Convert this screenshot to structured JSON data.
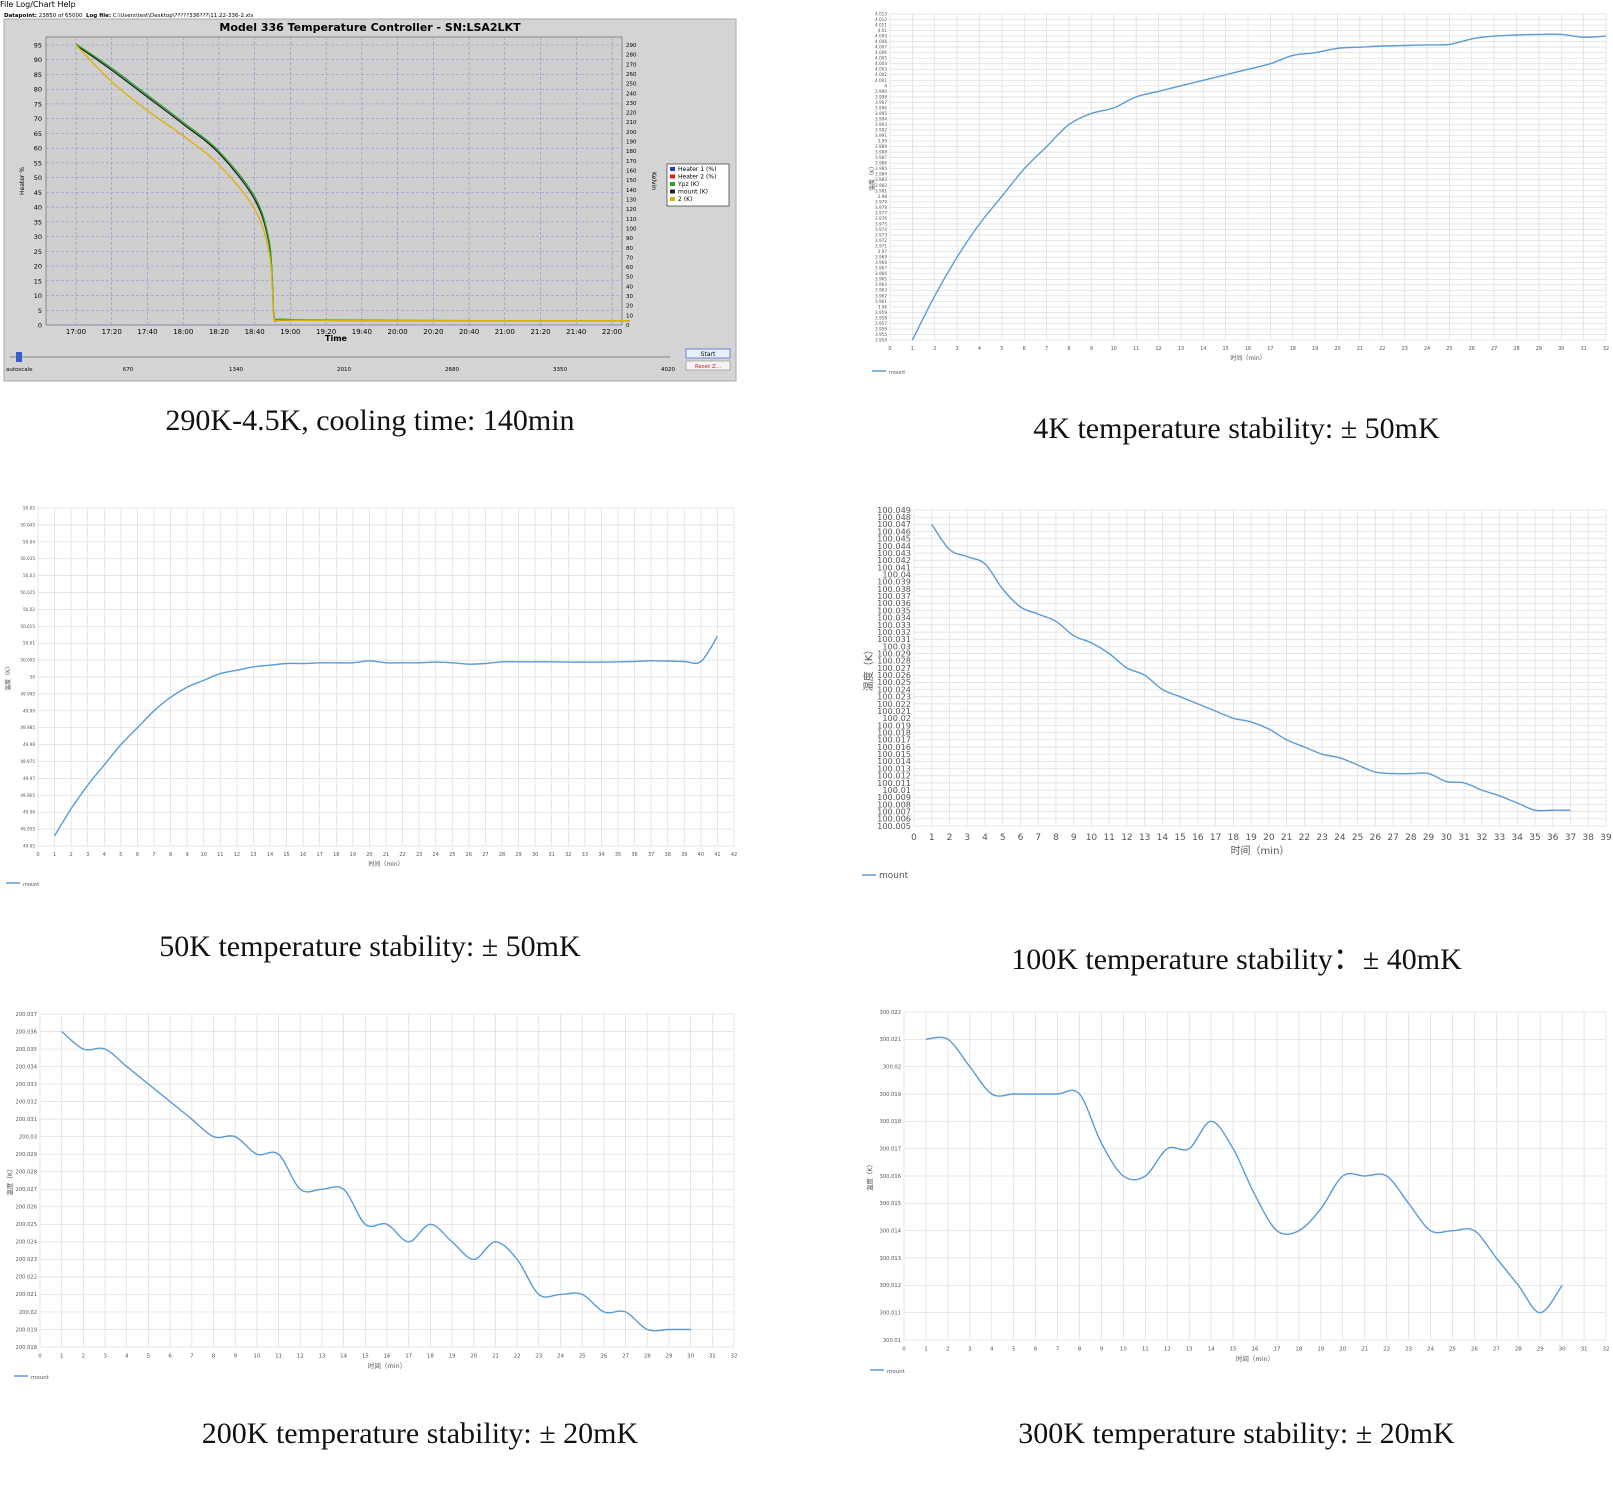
{
  "app": {
    "menu": "File Log/Chart Help",
    "info_label_datapoint": "Datapoint:",
    "info_datapoint": "23850 of 65000",
    "info_label_logfile": "Log file:",
    "info_logfile": "C:\\Users\\test\\Desktop\\?????336???\\11.22-336-2.xls",
    "start_button": "Start",
    "reset_button": "Reset Z...",
    "autoscale_label": "autoscale",
    "slider_ticks": [
      "670",
      "1340",
      "2010",
      "2680",
      "3350",
      "4020"
    ]
  },
  "captions": [
    "290K-4.5K, cooling time: 140min",
    "4K temperature stability: ± 50mK",
    "50K temperature stability: ± 50mK",
    "100K temperature stability：± 40mK",
    "200K temperature stability: ± 20mK",
    "300K temperature stability: ± 20mK"
  ],
  "colors": {
    "line": "#5b9bd5",
    "grid": "#dcdcdc",
    "lakeshore_bg": "#d4d4d4",
    "lakeshore_plot": "#cfcfcf"
  },
  "chart_data": [
    {
      "type": "line",
      "title": "Model 336 Temperature Controller - SN:LSA2LKT",
      "xlabel": "Time",
      "ylabel": "Heater %",
      "y2label": "Kelvin",
      "x_ticks": [
        "17:00",
        "17:20",
        "17:40",
        "18:00",
        "18:20",
        "18:40",
        "19:00",
        "19:20",
        "19:40",
        "20:00",
        "20:20",
        "20:40",
        "21:00",
        "21:20",
        "21:40",
        "22:00"
      ],
      "ylim": [
        0,
        95
      ],
      "y_ticks": [
        0,
        5,
        10,
        15,
        20,
        25,
        30,
        35,
        40,
        45,
        50,
        55,
        60,
        65,
        70,
        75,
        80,
        85,
        90,
        95
      ],
      "y2lim": [
        0,
        290
      ],
      "y2_ticks": [
        0,
        10,
        20,
        30,
        40,
        50,
        60,
        70,
        80,
        90,
        100,
        110,
        120,
        130,
        140,
        150,
        160,
        170,
        180,
        190,
        200,
        210,
        220,
        230,
        240,
        250,
        260,
        270,
        280,
        290
      ],
      "legend": [
        "Heater 1 (%)",
        "Heater 2 (%)",
        "Ypz (K)",
        "mount (K)",
        "2 (K)"
      ],
      "legend_colors": [
        "#1f3fbf",
        "#e02020",
        "#2aa02a",
        "#202020",
        "#e0b000"
      ],
      "legend_placement": "right",
      "series": [
        {
          "name": "mount (K)",
          "color": "#202020",
          "x_min": [
            0,
            20,
            40,
            60,
            80,
            100,
            108,
            110,
            111,
            115,
            140,
            180,
            230,
            310
          ],
          "y_K": [
            290,
            264,
            236,
            208,
            178,
            130,
            85,
            40,
            7,
            5,
            4.8,
            4.6,
            4.5,
            4.5
          ]
        },
        {
          "name": "Ypz (K)",
          "color": "#2aa02a",
          "x_min": [
            0,
            20,
            40,
            60,
            80,
            100,
            108,
            110,
            111,
            115,
            140,
            180,
            230,
            310
          ],
          "y_K": [
            291,
            266,
            238,
            210,
            180,
            133,
            88,
            42,
            8,
            6,
            5,
            4.8,
            4.6,
            4.6
          ]
        },
        {
          "name": "2 (K)",
          "color": "#e0b000",
          "x_min": [
            0,
            20,
            40,
            60,
            80,
            100,
            108,
            110,
            111,
            115,
            140,
            180,
            230,
            310
          ],
          "y_K": [
            290,
            252,
            222,
            196,
            166,
            120,
            76,
            36,
            6,
            5,
            4.6,
            4.5,
            4.5,
            4.5
          ]
        }
      ]
    },
    {
      "type": "line",
      "ylabel": "温度（K）",
      "xlabel": "时间（min）",
      "legend": [
        "mount"
      ],
      "legend_placement": "bottom-left",
      "xlim": [
        0,
        32
      ],
      "x_ticks": [
        0,
        1,
        2,
        3,
        4,
        5,
        6,
        7,
        8,
        9,
        10,
        11,
        12,
        13,
        14,
        15,
        16,
        17,
        18,
        19,
        20,
        21,
        22,
        23,
        24,
        25,
        26,
        27,
        28,
        29,
        30,
        31,
        32
      ],
      "ylim": [
        3.954,
        4.013
      ],
      "y_ticks": [
        3.954,
        3.955,
        3.956,
        3.957,
        3.958,
        3.959,
        3.96,
        3.961,
        3.962,
        3.963,
        3.964,
        3.965,
        3.966,
        3.967,
        3.968,
        3.969,
        3.97,
        3.971,
        3.972,
        3.973,
        3.974,
        3.975,
        3.976,
        3.977,
        3.978,
        3.979,
        3.98,
        3.981,
        3.982,
        3.983,
        3.984,
        3.985,
        3.986,
        3.987,
        3.988,
        3.989,
        3.99,
        3.991,
        3.992,
        3.993,
        3.994,
        3.995,
        3.996,
        3.997,
        3.998,
        3.999,
        4,
        4.001,
        4.002,
        4.003,
        4.004,
        4.005,
        4.006,
        4.007,
        4.008,
        4.009,
        4.01,
        4.011,
        4.012,
        4.013
      ],
      "series": [
        {
          "name": "mount",
          "x": [
            1,
            2,
            3,
            4,
            5,
            6,
            7,
            8,
            9,
            10,
            11,
            12,
            13,
            14,
            15,
            16,
            17,
            18,
            19,
            20,
            21,
            22,
            23,
            24,
            25,
            26,
            27,
            28,
            29,
            30,
            31,
            32
          ],
          "y": [
            3.954,
            3.962,
            3.969,
            3.975,
            3.98,
            3.985,
            3.989,
            3.993,
            3.995,
            3.996,
            3.998,
            3.999,
            4.0,
            4.001,
            4.002,
            4.003,
            4.004,
            4.0055,
            4.006,
            4.0068,
            4.007,
            4.0072,
            4.0073,
            4.0074,
            4.0075,
            4.0085,
            4.009,
            4.0092,
            4.0093,
            4.0093,
            4.0088,
            4.009
          ]
        }
      ]
    },
    {
      "type": "line",
      "ylabel": "温度（K）",
      "xlabel": "时间（min）",
      "legend": [
        "mount"
      ],
      "legend_placement": "bottom-left",
      "xlim": [
        0,
        42
      ],
      "x_ticks": [
        0,
        1,
        2,
        3,
        4,
        5,
        6,
        7,
        8,
        9,
        10,
        11,
        12,
        13,
        14,
        15,
        16,
        17,
        18,
        19,
        20,
        21,
        22,
        23,
        24,
        25,
        26,
        27,
        28,
        29,
        30,
        31,
        32,
        33,
        34,
        35,
        36,
        37,
        38,
        39,
        40,
        41,
        42
      ],
      "ylim": [
        49.95,
        50.05
      ],
      "y_ticks": [
        49.95,
        49.955,
        49.96,
        49.965,
        49.97,
        49.975,
        49.98,
        49.985,
        49.99,
        49.995,
        50,
        50.005,
        50.01,
        50.015,
        50.02,
        50.025,
        50.03,
        50.035,
        50.04,
        50.045,
        50.05
      ],
      "series": [
        {
          "name": "mount",
          "x": [
            1,
            2,
            3,
            4,
            5,
            6,
            7,
            8,
            9,
            10,
            11,
            12,
            13,
            14,
            15,
            16,
            17,
            18,
            19,
            20,
            21,
            22,
            23,
            24,
            25,
            26,
            27,
            28,
            29,
            30,
            31,
            32,
            33,
            34,
            35,
            36,
            37,
            38,
            39,
            40,
            41
          ],
          "y": [
            49.953,
            49.961,
            49.968,
            49.974,
            49.98,
            49.985,
            49.99,
            49.994,
            49.997,
            49.999,
            50.001,
            50.002,
            50.003,
            50.0035,
            50.004,
            50.004,
            50.0042,
            50.0042,
            50.0042,
            50.0048,
            50.0042,
            50.0042,
            50.0042,
            50.0044,
            50.0042,
            50.0038,
            50.004,
            50.0045,
            50.0045,
            50.0045,
            50.0045,
            50.0044,
            50.0044,
            50.0044,
            50.0045,
            50.0046,
            50.0048,
            50.0047,
            50.0046,
            50.0046,
            50.012
          ]
        }
      ]
    },
    {
      "type": "line",
      "ylabel": "温度（K）",
      "xlabel": "时间（min）",
      "legend": [
        "mount"
      ],
      "legend_placement": "bottom-left",
      "xlim": [
        0,
        39
      ],
      "x_ticks": [
        0,
        1,
        2,
        3,
        4,
        5,
        6,
        7,
        8,
        9,
        10,
        11,
        12,
        13,
        14,
        15,
        16,
        17,
        18,
        19,
        20,
        21,
        22,
        23,
        24,
        25,
        26,
        27,
        28,
        29,
        30,
        31,
        32,
        33,
        34,
        35,
        36,
        37,
        38,
        39
      ],
      "ylim": [
        100.005,
        100.049
      ],
      "y_ticks": [
        100.005,
        100.006,
        100.007,
        100.008,
        100.009,
        100.01,
        100.011,
        100.012,
        100.013,
        100.014,
        100.015,
        100.016,
        100.017,
        100.018,
        100.019,
        100.02,
        100.021,
        100.022,
        100.023,
        100.024,
        100.025,
        100.026,
        100.027,
        100.028,
        100.029,
        100.03,
        100.031,
        100.032,
        100.033,
        100.034,
        100.035,
        100.036,
        100.037,
        100.038,
        100.039,
        100.04,
        100.041,
        100.042,
        100.043,
        100.044,
        100.045,
        100.046,
        100.047,
        100.048,
        100.049
      ],
      "series": [
        {
          "name": "mount",
          "x": [
            1,
            2,
            3,
            4,
            5,
            6,
            7,
            8,
            9,
            10,
            11,
            12,
            13,
            14,
            15,
            16,
            17,
            18,
            19,
            20,
            21,
            22,
            23,
            24,
            25,
            26,
            27,
            28,
            29,
            30,
            31,
            32,
            33,
            34,
            35,
            36,
            37
          ],
          "y": [
            100.047,
            100.0435,
            100.0425,
            100.0415,
            100.038,
            100.0355,
            100.0345,
            100.0335,
            100.0315,
            100.0305,
            100.029,
            100.027,
            100.026,
            100.024,
            100.023,
            100.022,
            100.021,
            100.02,
            100.0195,
            100.0185,
            100.017,
            100.016,
            100.015,
            100.0145,
            100.0135,
            100.0125,
            100.0123,
            100.0123,
            100.0123,
            100.0112,
            100.011,
            100.01,
            100.0092,
            100.0082,
            100.0072,
            100.0072,
            100.0072
          ]
        }
      ]
    },
    {
      "type": "line",
      "ylabel": "温度（K）",
      "xlabel": "时间（min）",
      "legend": [
        "mount"
      ],
      "legend_placement": "bottom-left",
      "xlim": [
        0,
        32
      ],
      "x_ticks": [
        0,
        1,
        2,
        3,
        4,
        5,
        6,
        7,
        8,
        9,
        10,
        11,
        12,
        13,
        14,
        15,
        16,
        17,
        18,
        19,
        20,
        21,
        22,
        23,
        24,
        25,
        26,
        27,
        28,
        29,
        30,
        31,
        32
      ],
      "ylim": [
        200.018,
        200.037
      ],
      "y_ticks": [
        200.018,
        200.019,
        200.02,
        200.021,
        200.022,
        200.023,
        200.024,
        200.025,
        200.026,
        200.027,
        200.028,
        200.029,
        200.03,
        200.031,
        200.032,
        200.033,
        200.034,
        200.035,
        200.036,
        200.037
      ],
      "series": [
        {
          "name": "mount",
          "x": [
            1,
            2,
            3,
            4,
            5,
            6,
            7,
            8,
            9,
            10,
            11,
            12,
            13,
            14,
            15,
            16,
            17,
            18,
            19,
            20,
            21,
            22,
            23,
            24,
            25,
            26,
            27,
            28,
            29,
            30
          ],
          "y": [
            200.036,
            200.035,
            200.035,
            200.034,
            200.033,
            200.032,
            200.031,
            200.03,
            200.03,
            200.029,
            200.029,
            200.027,
            200.027,
            200.027,
            200.025,
            200.025,
            200.024,
            200.025,
            200.024,
            200.023,
            200.024,
            200.023,
            200.021,
            200.021,
            200.021,
            200.02,
            200.02,
            200.019,
            200.019,
            200.019
          ]
        }
      ]
    },
    {
      "type": "line",
      "ylabel": "温度（K）",
      "xlabel": "时间（min）",
      "legend": [
        "mount"
      ],
      "legend_placement": "bottom-left",
      "xlim": [
        0,
        32
      ],
      "x_ticks": [
        0,
        1,
        2,
        3,
        4,
        5,
        6,
        7,
        8,
        9,
        10,
        11,
        12,
        13,
        14,
        15,
        16,
        17,
        18,
        19,
        20,
        21,
        22,
        23,
        24,
        25,
        26,
        27,
        28,
        29,
        30,
        31,
        32
      ],
      "ylim": [
        300.01,
        300.022
      ],
      "y_ticks": [
        300.01,
        300.011,
        300.012,
        300.013,
        300.014,
        300.015,
        300.016,
        300.017,
        300.018,
        300.019,
        300.02,
        300.021,
        300.022
      ],
      "series": [
        {
          "name": "mount",
          "x": [
            1,
            2,
            3,
            4,
            5,
            6,
            7,
            8,
            9,
            10,
            11,
            12,
            13,
            14,
            15,
            16,
            17,
            18,
            19,
            20,
            21,
            22,
            23,
            24,
            25,
            26,
            27,
            28,
            29,
            30
          ],
          "y": [
            300.021,
            300.021,
            300.02,
            300.019,
            300.019,
            300.019,
            300.019,
            300.019,
            300.0172,
            300.016,
            300.016,
            300.017,
            300.017,
            300.018,
            300.017,
            300.0153,
            300.014,
            300.014,
            300.0148,
            300.016,
            300.016,
            300.016,
            300.015,
            300.014,
            300.014,
            300.014,
            300.013,
            300.012,
            300.011,
            300.012
          ]
        }
      ]
    }
  ]
}
